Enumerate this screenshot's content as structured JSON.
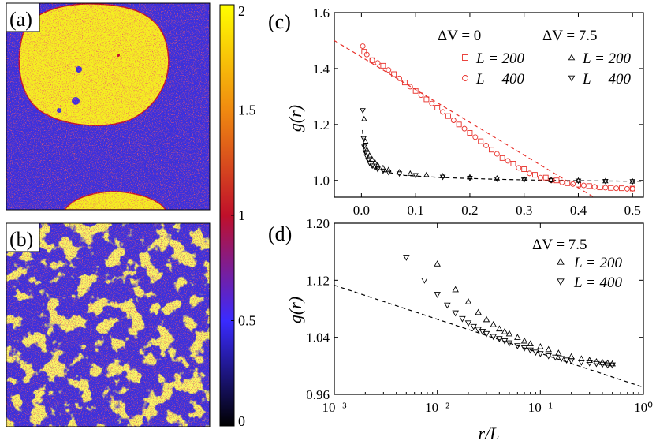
{
  "panel_labels": {
    "a": "(a)",
    "b": "(b)",
    "c": "(c)",
    "d": "(d)"
  },
  "colorbar": {
    "ticks": [
      "0",
      "0.5",
      "1",
      "1.5",
      "2"
    ],
    "tick_values": [
      0,
      0.5,
      1,
      1.5,
      2
    ],
    "range": [
      0,
      2
    ],
    "stops": [
      "#000000",
      "#3a2bff",
      "#c0102a",
      "#f08a10",
      "#ffff00"
    ]
  },
  "colors": {
    "red": "#e8302a",
    "black": "#000000",
    "map_blue": "#3b30e0",
    "map_yellow": "#f4ee22"
  },
  "chart_data": [
    {
      "id": "c",
      "type": "scatter",
      "xlabel": "",
      "ylabel": "g(r)",
      "xlim": [
        -0.05,
        0.52
      ],
      "ylim": [
        0.94,
        1.6
      ],
      "x_ticks": [
        0.0,
        0.1,
        0.2,
        0.3,
        0.4,
        0.5
      ],
      "x_tick_labels": [
        "0.0",
        "0.1",
        "0.2",
        "0.3",
        "0.4",
        "0.5"
      ],
      "y_ticks": [
        1.0,
        1.2,
        1.4,
        1.6
      ],
      "y_tick_labels": [
        "1.0",
        "1.2",
        "1.4",
        "1.6"
      ],
      "legend": {
        "group_titles": [
          "ΔV = 0",
          "ΔV = 7.5"
        ],
        "entries": [
          {
            "label": "L = 200",
            "group": "ΔV = 0",
            "marker": "square",
            "color": "#e8302a"
          },
          {
            "label": "L = 400",
            "group": "ΔV = 0",
            "marker": "circle",
            "color": "#e8302a"
          },
          {
            "label": "L = 200",
            "group": "ΔV = 7.5",
            "marker": "triangle-up",
            "color": "#000000"
          },
          {
            "label": "L = 400",
            "group": "ΔV = 7.5",
            "marker": "triangle-down",
            "color": "#000000"
          }
        ]
      },
      "series": [
        {
          "name": "ΔV=0 L=200",
          "marker": "square",
          "color": "#e8302a",
          "x": [
            0.005,
            0.02,
            0.04,
            0.06,
            0.08,
            0.1,
            0.12,
            0.14,
            0.16,
            0.18,
            0.2,
            0.22,
            0.24,
            0.26,
            0.28,
            0.3,
            0.32,
            0.34,
            0.36,
            0.38,
            0.4,
            0.42,
            0.44,
            0.46,
            0.48,
            0.5
          ],
          "y": [
            1.46,
            1.43,
            1.41,
            1.38,
            1.35,
            1.32,
            1.29,
            1.26,
            1.23,
            1.2,
            1.17,
            1.14,
            1.11,
            1.08,
            1.06,
            1.04,
            1.02,
            1.01,
            1.0,
            0.99,
            0.985,
            0.98,
            0.975,
            0.973,
            0.972,
            0.971
          ]
        },
        {
          "name": "ΔV=0 L=400",
          "marker": "circle",
          "color": "#e8302a",
          "x": [
            0.0025,
            0.01,
            0.02,
            0.03,
            0.05,
            0.07,
            0.09,
            0.11,
            0.13,
            0.15,
            0.17,
            0.19,
            0.21,
            0.23,
            0.25,
            0.27,
            0.29,
            0.31,
            0.33,
            0.35,
            0.37,
            0.39,
            0.41,
            0.43,
            0.45,
            0.47,
            0.49,
            0.5
          ],
          "y": [
            1.48,
            1.45,
            1.43,
            1.42,
            1.395,
            1.365,
            1.335,
            1.305,
            1.275,
            1.245,
            1.215,
            1.185,
            1.155,
            1.125,
            1.095,
            1.07,
            1.045,
            1.025,
            1.01,
            1.0,
            0.993,
            0.987,
            0.982,
            0.977,
            0.974,
            0.972,
            0.97,
            0.97
          ]
        },
        {
          "name": "ΔV=7.5 L=200",
          "marker": "triangle-up",
          "color": "#000000",
          "x": [
            0.005,
            0.0075,
            0.01,
            0.015,
            0.02,
            0.025,
            0.03,
            0.04,
            0.05,
            0.07,
            0.09,
            0.12,
            0.15,
            0.2,
            0.25,
            0.3,
            0.35,
            0.4,
            0.45,
            0.5
          ],
          "y": [
            1.22,
            1.14,
            1.11,
            1.09,
            1.075,
            1.065,
            1.055,
            1.045,
            1.038,
            1.03,
            1.025,
            1.02,
            1.016,
            1.012,
            1.008,
            1.005,
            1.002,
            1.0,
            0.998,
            0.997
          ]
        },
        {
          "name": "ΔV=7.5 L=400",
          "marker": "triangle-down",
          "color": "#000000",
          "x": [
            0.0025,
            0.004,
            0.005,
            0.0075,
            0.01,
            0.0125,
            0.015,
            0.02,
            0.025,
            0.03,
            0.04,
            0.05,
            0.07,
            0.1,
            0.15,
            0.2,
            0.25,
            0.3,
            0.35,
            0.4,
            0.45,
            0.5
          ],
          "y": [
            1.25,
            1.15,
            1.12,
            1.1,
            1.085,
            1.072,
            1.062,
            1.052,
            1.045,
            1.04,
            1.034,
            1.029,
            1.024,
            1.018,
            1.012,
            1.008,
            1.005,
            1.002,
            1.0,
            0.998,
            0.997,
            0.996
          ]
        }
      ],
      "fit_lines": [
        {
          "name": "red-dashed-fit",
          "color": "#e8302a",
          "x": [
            -0.05,
            0.45
          ],
          "y": [
            1.5,
            0.915
          ]
        },
        {
          "name": "black-dashed-fit",
          "color": "#000000",
          "x": [
            0.002,
            0.005,
            0.01,
            0.02,
            0.04,
            0.08,
            0.15,
            0.25,
            0.35,
            0.45,
            0.52
          ],
          "y": [
            1.18,
            1.11,
            1.075,
            1.05,
            1.032,
            1.018,
            1.01,
            1.004,
            1.0,
            0.998,
            0.997
          ]
        }
      ]
    },
    {
      "id": "d",
      "type": "scatter",
      "xscale": "log",
      "xlabel": "r/L",
      "ylabel": "g(r)",
      "xlim": [
        0.001,
        1
      ],
      "ylim": [
        0.96,
        1.2
      ],
      "x_ticks": [
        0.001,
        0.01,
        0.1,
        1
      ],
      "x_tick_labels": [
        "10⁻³",
        "10⁻²",
        "10⁻¹",
        "10⁰"
      ],
      "y_ticks": [
        0.96,
        1.04,
        1.12,
        1.2
      ],
      "y_tick_labels": [
        "0.96",
        "1.04",
        "1.12",
        "1.20"
      ],
      "legend": {
        "title": "ΔV = 7.5",
        "entries": [
          {
            "label": "L = 200",
            "marker": "triangle-up",
            "color": "#000000"
          },
          {
            "label": "L = 400",
            "marker": "triangle-down",
            "color": "#000000"
          }
        ]
      },
      "series": [
        {
          "name": "ΔV=7.5 L=200",
          "marker": "triangle-up",
          "color": "#000000",
          "x": [
            0.01,
            0.015,
            0.02,
            0.025,
            0.03,
            0.035,
            0.04,
            0.045,
            0.05,
            0.06,
            0.07,
            0.08,
            0.1,
            0.12,
            0.15,
            0.2,
            0.25,
            0.3,
            0.35,
            0.4,
            0.45,
            0.5
          ],
          "y": [
            1.143,
            1.107,
            1.09,
            1.075,
            1.065,
            1.058,
            1.052,
            1.048,
            1.045,
            1.04,
            1.035,
            1.031,
            1.027,
            1.023,
            1.018,
            1.013,
            1.01,
            1.008,
            1.006,
            1.005,
            1.004,
            1.003
          ]
        },
        {
          "name": "ΔV=7.5 L=400",
          "marker": "triangle-down",
          "color": "#000000",
          "x": [
            0.005,
            0.0075,
            0.01,
            0.0125,
            0.015,
            0.0175,
            0.02,
            0.0225,
            0.025,
            0.0275,
            0.03,
            0.035,
            0.04,
            0.045,
            0.05,
            0.06,
            0.07,
            0.08,
            0.09,
            0.1,
            0.12,
            0.14,
            0.16,
            0.18,
            0.2,
            0.25,
            0.3,
            0.35,
            0.4,
            0.45,
            0.5
          ],
          "y": [
            1.152,
            1.12,
            1.1,
            1.085,
            1.074,
            1.066,
            1.06,
            1.055,
            1.051,
            1.048,
            1.045,
            1.041,
            1.038,
            1.035,
            1.032,
            1.028,
            1.025,
            1.022,
            1.019,
            1.017,
            1.014,
            1.012,
            1.01,
            1.008,
            1.007,
            1.005,
            1.004,
            1.003,
            1.002,
            1.001,
            1.001
          ]
        }
      ],
      "fit_lines": [
        {
          "name": "black-dashed-fit",
          "color": "#000000",
          "x": [
            0.001,
            1
          ],
          "y": [
            1.113,
            0.97
          ]
        }
      ]
    }
  ]
}
